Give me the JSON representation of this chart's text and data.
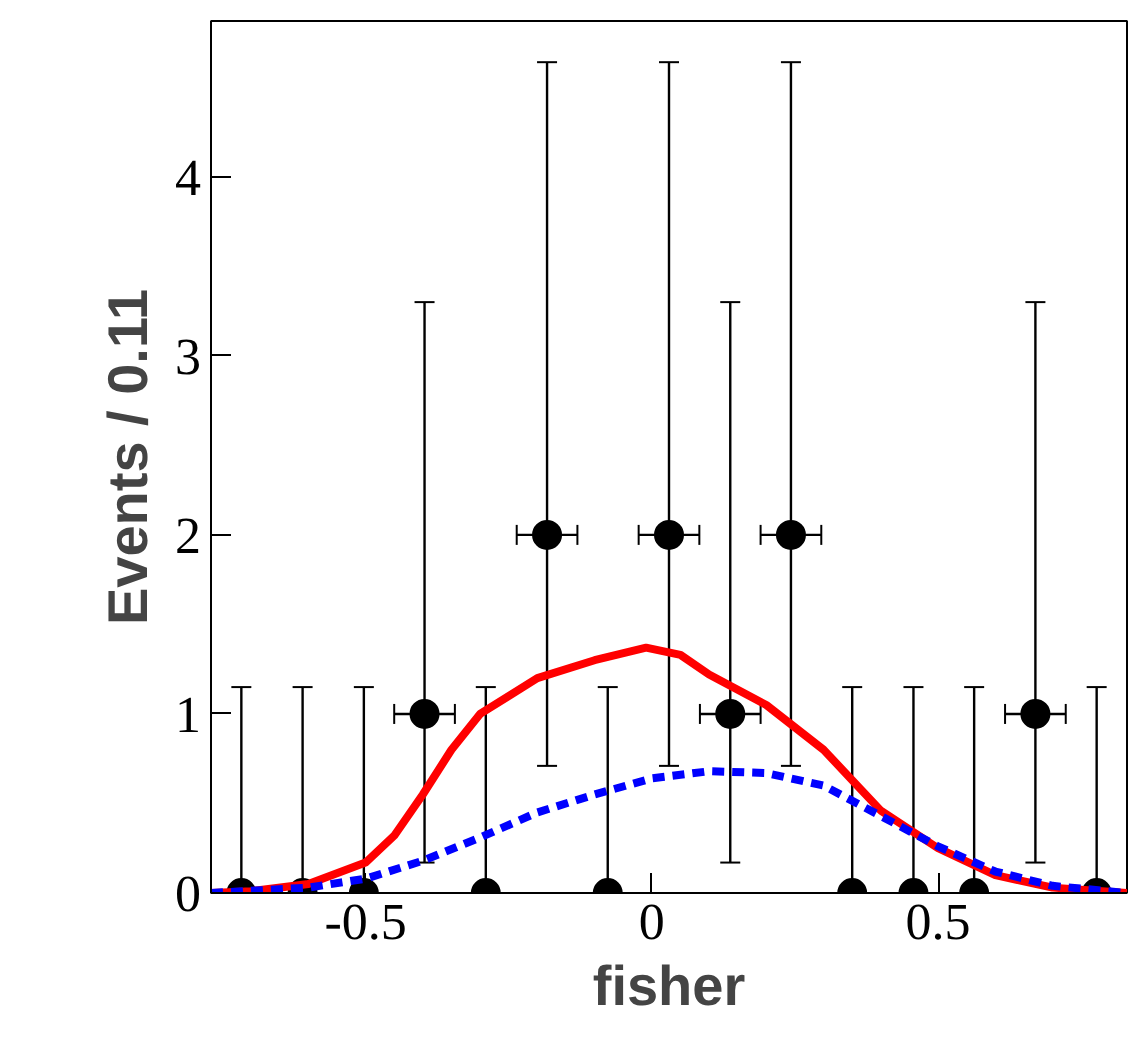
{
  "chart_data": {
    "type": "scatter",
    "xlabel": "fisher",
    "ylabel": "Events / 0.11",
    "xlim": [
      -0.77,
      0.83
    ],
    "ylim": [
      0,
      4.87
    ],
    "xticks": [
      -0.5,
      0,
      0.5
    ],
    "yticks": [
      0,
      1,
      2,
      3,
      4
    ],
    "grid": false,
    "series": [
      {
        "color": "#000000",
        "marker": "circle",
        "x": [
          -0.717,
          -0.61,
          -0.503,
          -0.397,
          -0.29,
          -0.183,
          -0.077,
          0.03,
          0.137,
          0.243,
          0.35,
          0.457,
          0.563,
          0.67,
          0.777
        ],
        "values": [
          0,
          0,
          0,
          1,
          0,
          2,
          0,
          2,
          1,
          2,
          0,
          0,
          0,
          1,
          0
        ],
        "errors": [
          [
            0,
            1.15
          ],
          [
            0,
            1.15
          ],
          [
            0,
            1.15
          ],
          [
            0.17,
            3.3
          ],
          [
            0,
            1.15
          ],
          [
            0.71,
            4.64
          ],
          [
            0,
            1.15
          ],
          [
            0.71,
            4.64
          ],
          [
            0.17,
            3.3
          ],
          [
            0.71,
            4.64
          ],
          [
            0,
            1.15
          ],
          [
            0,
            1.15
          ],
          [
            0,
            1.15
          ],
          [
            0.17,
            3.3
          ],
          [
            0,
            1.15
          ]
        ],
        "xerrors": [
          null,
          null,
          null,
          0.053,
          null,
          0.053,
          null,
          0.053,
          0.053,
          0.053,
          null,
          null,
          null,
          0.053,
          null
        ]
      },
      {
        "type": "line",
        "color": "#ff0000",
        "line_style": "solid",
        "x": [
          -0.77,
          -0.7,
          -0.6,
          -0.5,
          -0.45,
          -0.4,
          -0.35,
          -0.3,
          -0.2,
          -0.1,
          -0.01,
          0.05,
          0.1,
          0.2,
          0.3,
          0.35,
          0.4,
          0.5,
          0.6,
          0.7,
          0.83
        ],
        "values": [
          0,
          0.01,
          0.05,
          0.17,
          0.32,
          0.55,
          0.8,
          1.0,
          1.2,
          1.3,
          1.37,
          1.33,
          1.22,
          1.05,
          0.8,
          0.63,
          0.46,
          0.25,
          0.1,
          0.03,
          0
        ]
      },
      {
        "type": "line",
        "color": "#0000ff",
        "line_style": "dashed",
        "x": [
          -0.77,
          -0.6,
          -0.5,
          -0.4,
          -0.3,
          -0.2,
          -0.1,
          0,
          0.1,
          0.2,
          0.3,
          0.4,
          0.5,
          0.6,
          0.7,
          0.83
        ],
        "values": [
          0,
          0.03,
          0.08,
          0.18,
          0.31,
          0.45,
          0.55,
          0.64,
          0.68,
          0.67,
          0.6,
          0.43,
          0.26,
          0.12,
          0.04,
          0
        ]
      }
    ]
  }
}
